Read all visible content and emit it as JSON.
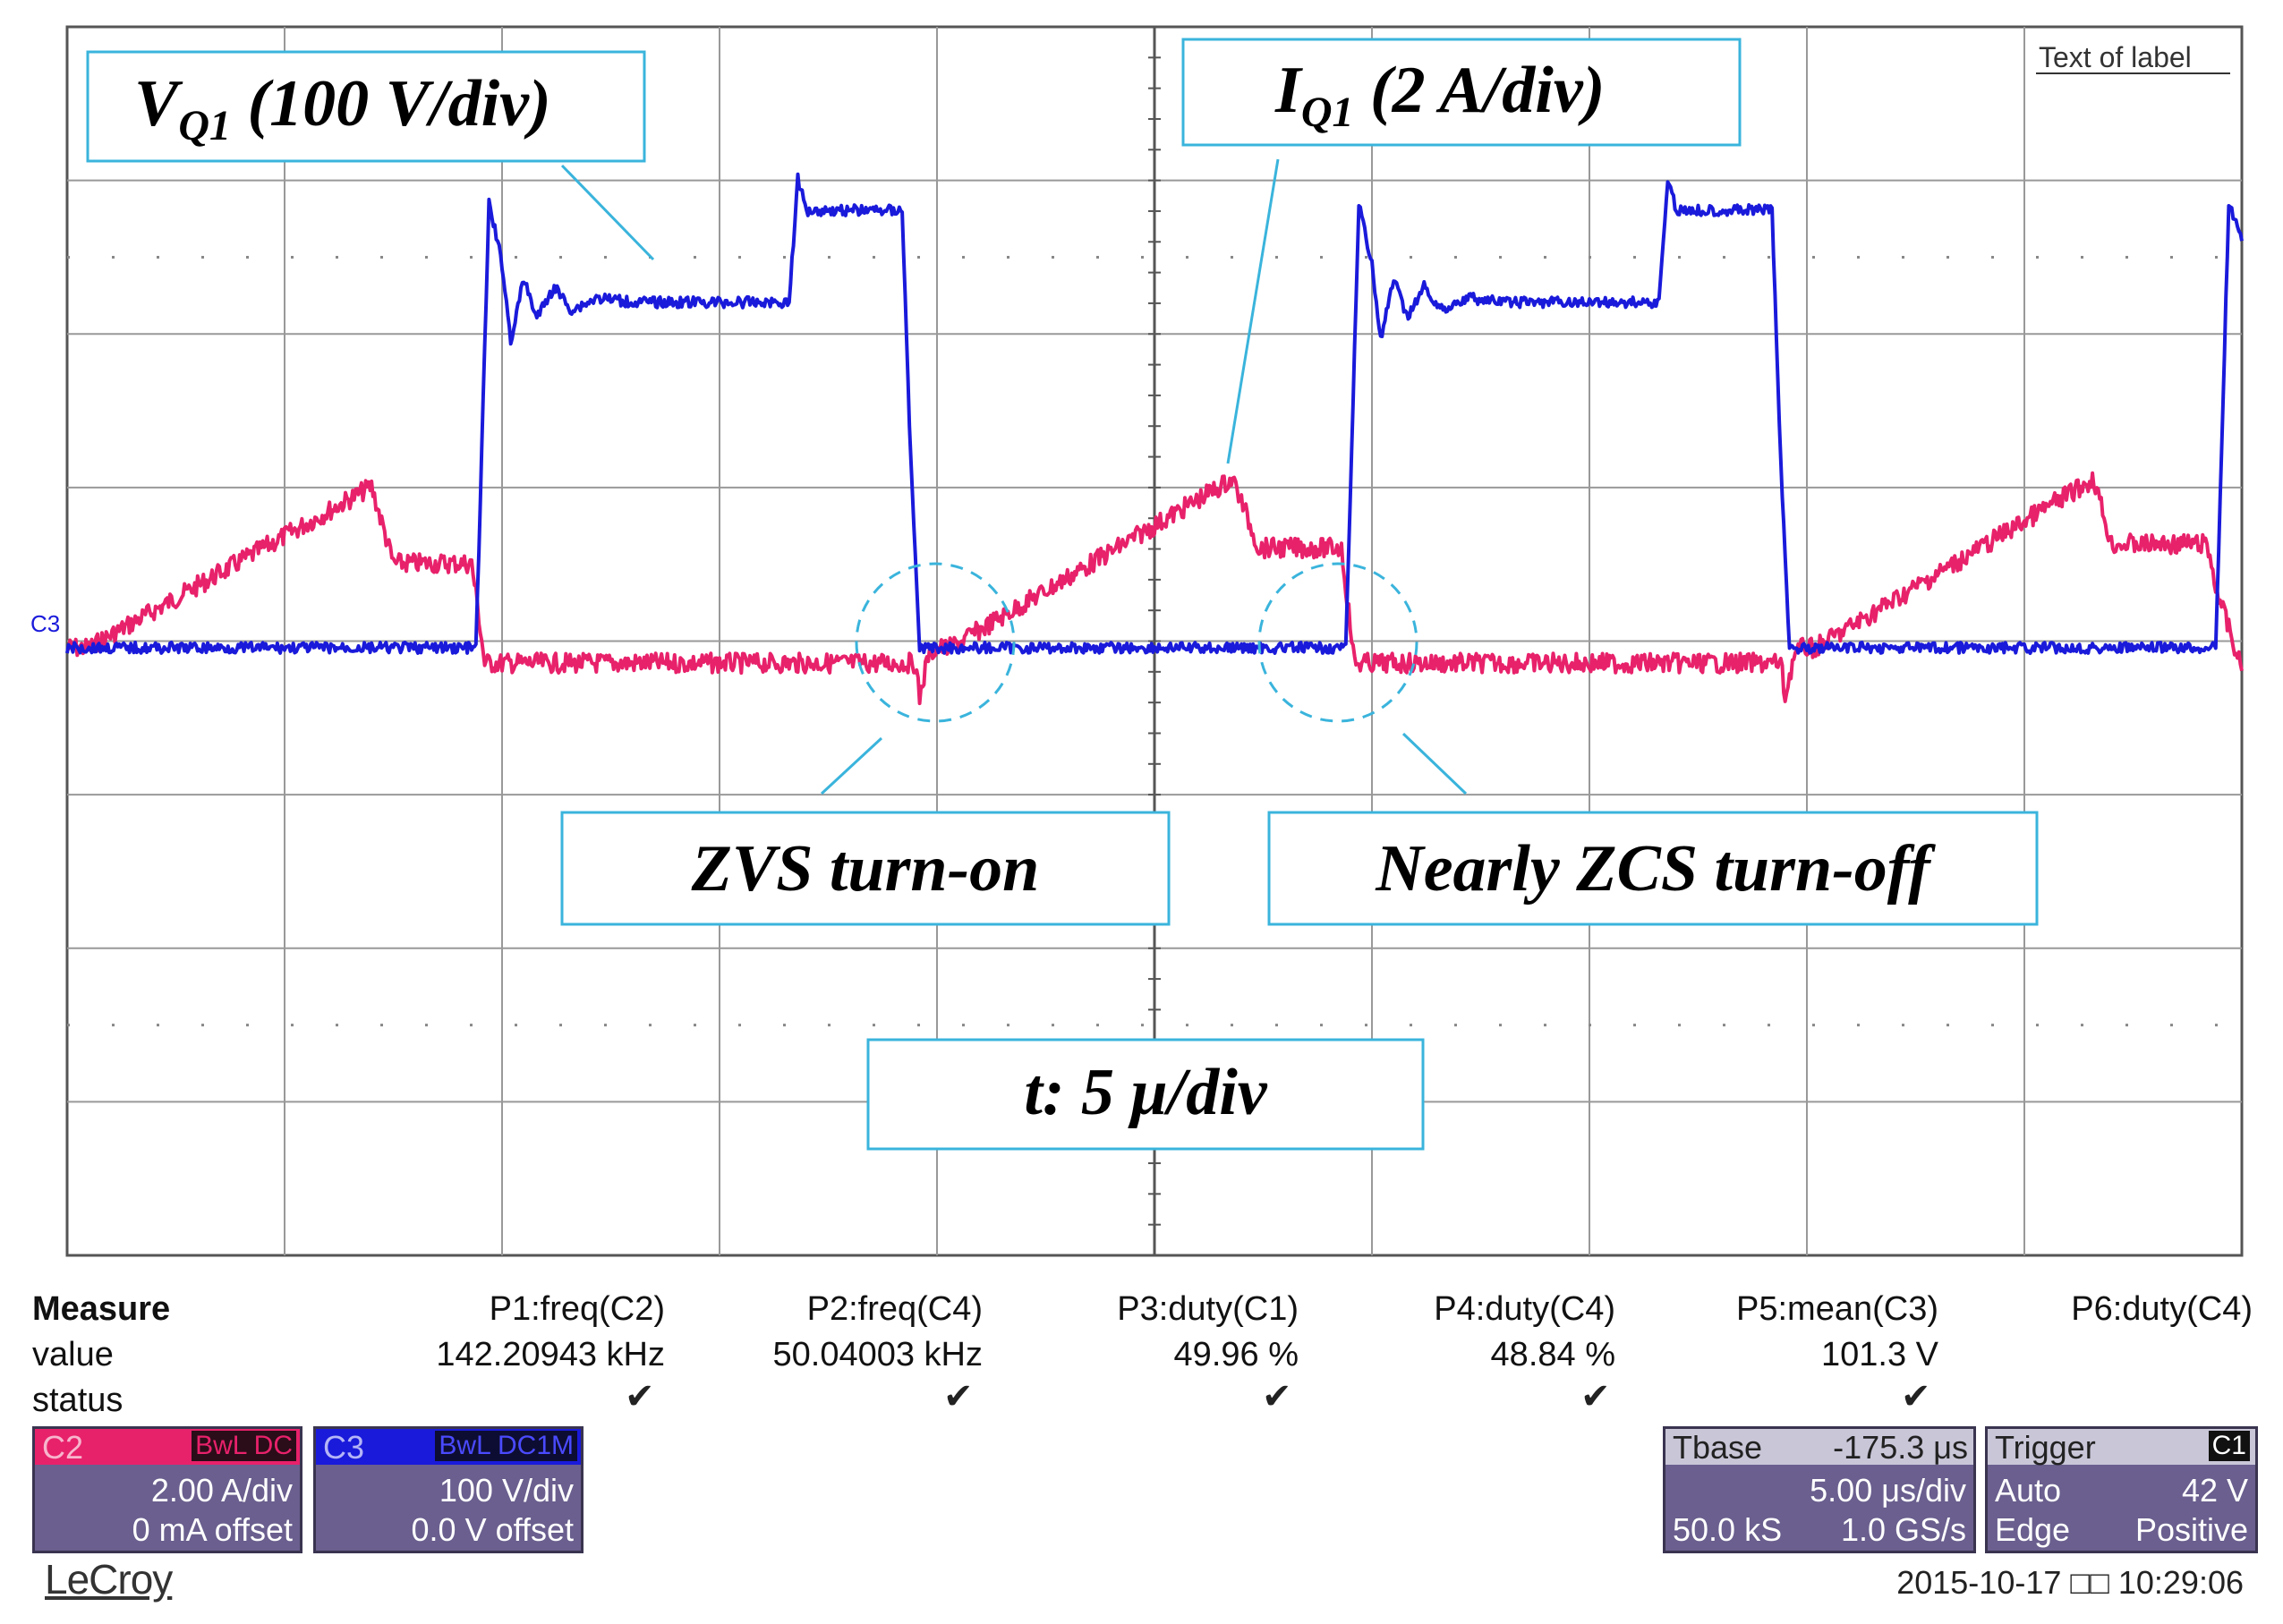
{
  "chart_data": {
    "type": "line",
    "title": "",
    "corner_label": "Text of label",
    "channel_marker": "C3",
    "annotations": {
      "voltage_label": {
        "main": "V",
        "sub": "Q1",
        "rest": " (100 V/div)"
      },
      "current_label": {
        "main": "I",
        "sub": "Q1",
        "rest": " (2 A/div)"
      },
      "zvs": "ZVS turn-on",
      "zcs": "Nearly ZCS turn-off",
      "timebase": "t: 5 μ/div"
    },
    "axes": {
      "x_divisions": 10,
      "y_divisions": 8,
      "x_range_us": [
        0,
        50
      ],
      "grid": true
    },
    "series": [
      {
        "name": "VQ1",
        "unit": "V",
        "color": "#1a1adb",
        "scale_per_div": 100,
        "description": "Q1 drain-source voltage, ~50 kHz, duty ~49%",
        "points_us_V": [
          [
            0,
            0
          ],
          [
            9.4,
            0
          ],
          [
            9.7,
            290
          ],
          [
            10.0,
            250
          ],
          [
            10.2,
            200
          ],
          [
            10.5,
            240
          ],
          [
            10.8,
            215
          ],
          [
            11.2,
            235
          ],
          [
            11.6,
            220
          ],
          [
            12.2,
            228
          ],
          [
            13.0,
            225
          ],
          [
            16.6,
            225
          ],
          [
            16.8,
            305
          ],
          [
            17.0,
            285
          ],
          [
            19.2,
            285
          ],
          [
            19.4,
            120
          ],
          [
            19.6,
            0
          ],
          [
            29.4,
            0
          ],
          [
            29.7,
            290
          ],
          [
            30.0,
            250
          ],
          [
            30.2,
            200
          ],
          [
            30.5,
            240
          ],
          [
            30.8,
            215
          ],
          [
            31.2,
            235
          ],
          [
            31.6,
            220
          ],
          [
            32.2,
            228
          ],
          [
            33.0,
            225
          ],
          [
            36.6,
            225
          ],
          [
            36.8,
            305
          ],
          [
            37.0,
            285
          ],
          [
            39.2,
            285
          ],
          [
            39.4,
            120
          ],
          [
            39.6,
            0
          ],
          [
            49.4,
            0
          ],
          [
            49.7,
            290
          ],
          [
            50.0,
            265
          ]
        ]
      },
      {
        "name": "IQ1",
        "unit": "A",
        "color": "#e8216b",
        "scale_per_div": 2,
        "description": "Q1 current, triangular ramp with flat top, negative during off-state",
        "points_us_A": [
          [
            0,
            0
          ],
          [
            0.5,
            0
          ],
          [
            7.0,
            2.1
          ],
          [
            7.5,
            1.1
          ],
          [
            9.3,
            1.1
          ],
          [
            9.4,
            0.7
          ],
          [
            9.6,
            -0.2
          ],
          [
            19.5,
            -0.2
          ],
          [
            19.6,
            -0.65
          ],
          [
            19.8,
            -0.1
          ],
          [
            20.0,
            0
          ],
          [
            20.3,
            0
          ],
          [
            26.8,
            2.2
          ],
          [
            27.4,
            1.3
          ],
          [
            29.3,
            1.3
          ],
          [
            29.4,
            0.8
          ],
          [
            29.6,
            -0.2
          ],
          [
            39.4,
            -0.2
          ],
          [
            39.5,
            -0.65
          ],
          [
            39.7,
            -0.1
          ],
          [
            39.9,
            0
          ],
          [
            40.2,
            0
          ],
          [
            46.6,
            2.2
          ],
          [
            47.0,
            1.35
          ],
          [
            49.2,
            1.35
          ],
          [
            49.4,
            0.8
          ],
          [
            50.0,
            -0.3
          ]
        ]
      }
    ]
  },
  "measure": {
    "head": "Measure",
    "row_value": "value",
    "row_status": "status",
    "params": [
      {
        "name": "P1:freq(C2)",
        "value": "142.20943 kHz",
        "status": "✔"
      },
      {
        "name": "P2:freq(C4)",
        "value": "50.04003 kHz",
        "status": "✔"
      },
      {
        "name": "P3:duty(C1)",
        "value": "49.96 %",
        "status": "✔"
      },
      {
        "name": "P4:duty(C4)",
        "value": "48.84 %",
        "status": "✔"
      },
      {
        "name": "P5:mean(C3)",
        "value": "101.3 V",
        "status": "✔"
      },
      {
        "name": "P6:duty(C4)",
        "value": "",
        "status": ""
      }
    ]
  },
  "channels": [
    {
      "id": "C2",
      "flags": "BwL DC",
      "scale": "2.00 A/div",
      "offset": "0 mA offset",
      "color": "#e8216b"
    },
    {
      "id": "C3",
      "flags": "BwL DC1M",
      "scale": "100 V/div",
      "offset": "0.0 V offset",
      "color": "#1a1adb"
    }
  ],
  "timebase": {
    "label": "Tbase",
    "delay": "-175.3 μs",
    "scale": "5.00 μs/div",
    "samples": "50.0 kS",
    "rate": "1.0 GS/s"
  },
  "trigger": {
    "label": "Trigger",
    "channel": "C1",
    "mode": "Auto",
    "level": "42 V",
    "type": "Edge",
    "slope": "Positive"
  },
  "brand": "LeCroy",
  "datetime": "2015-10-17 □□ 10:29:06"
}
